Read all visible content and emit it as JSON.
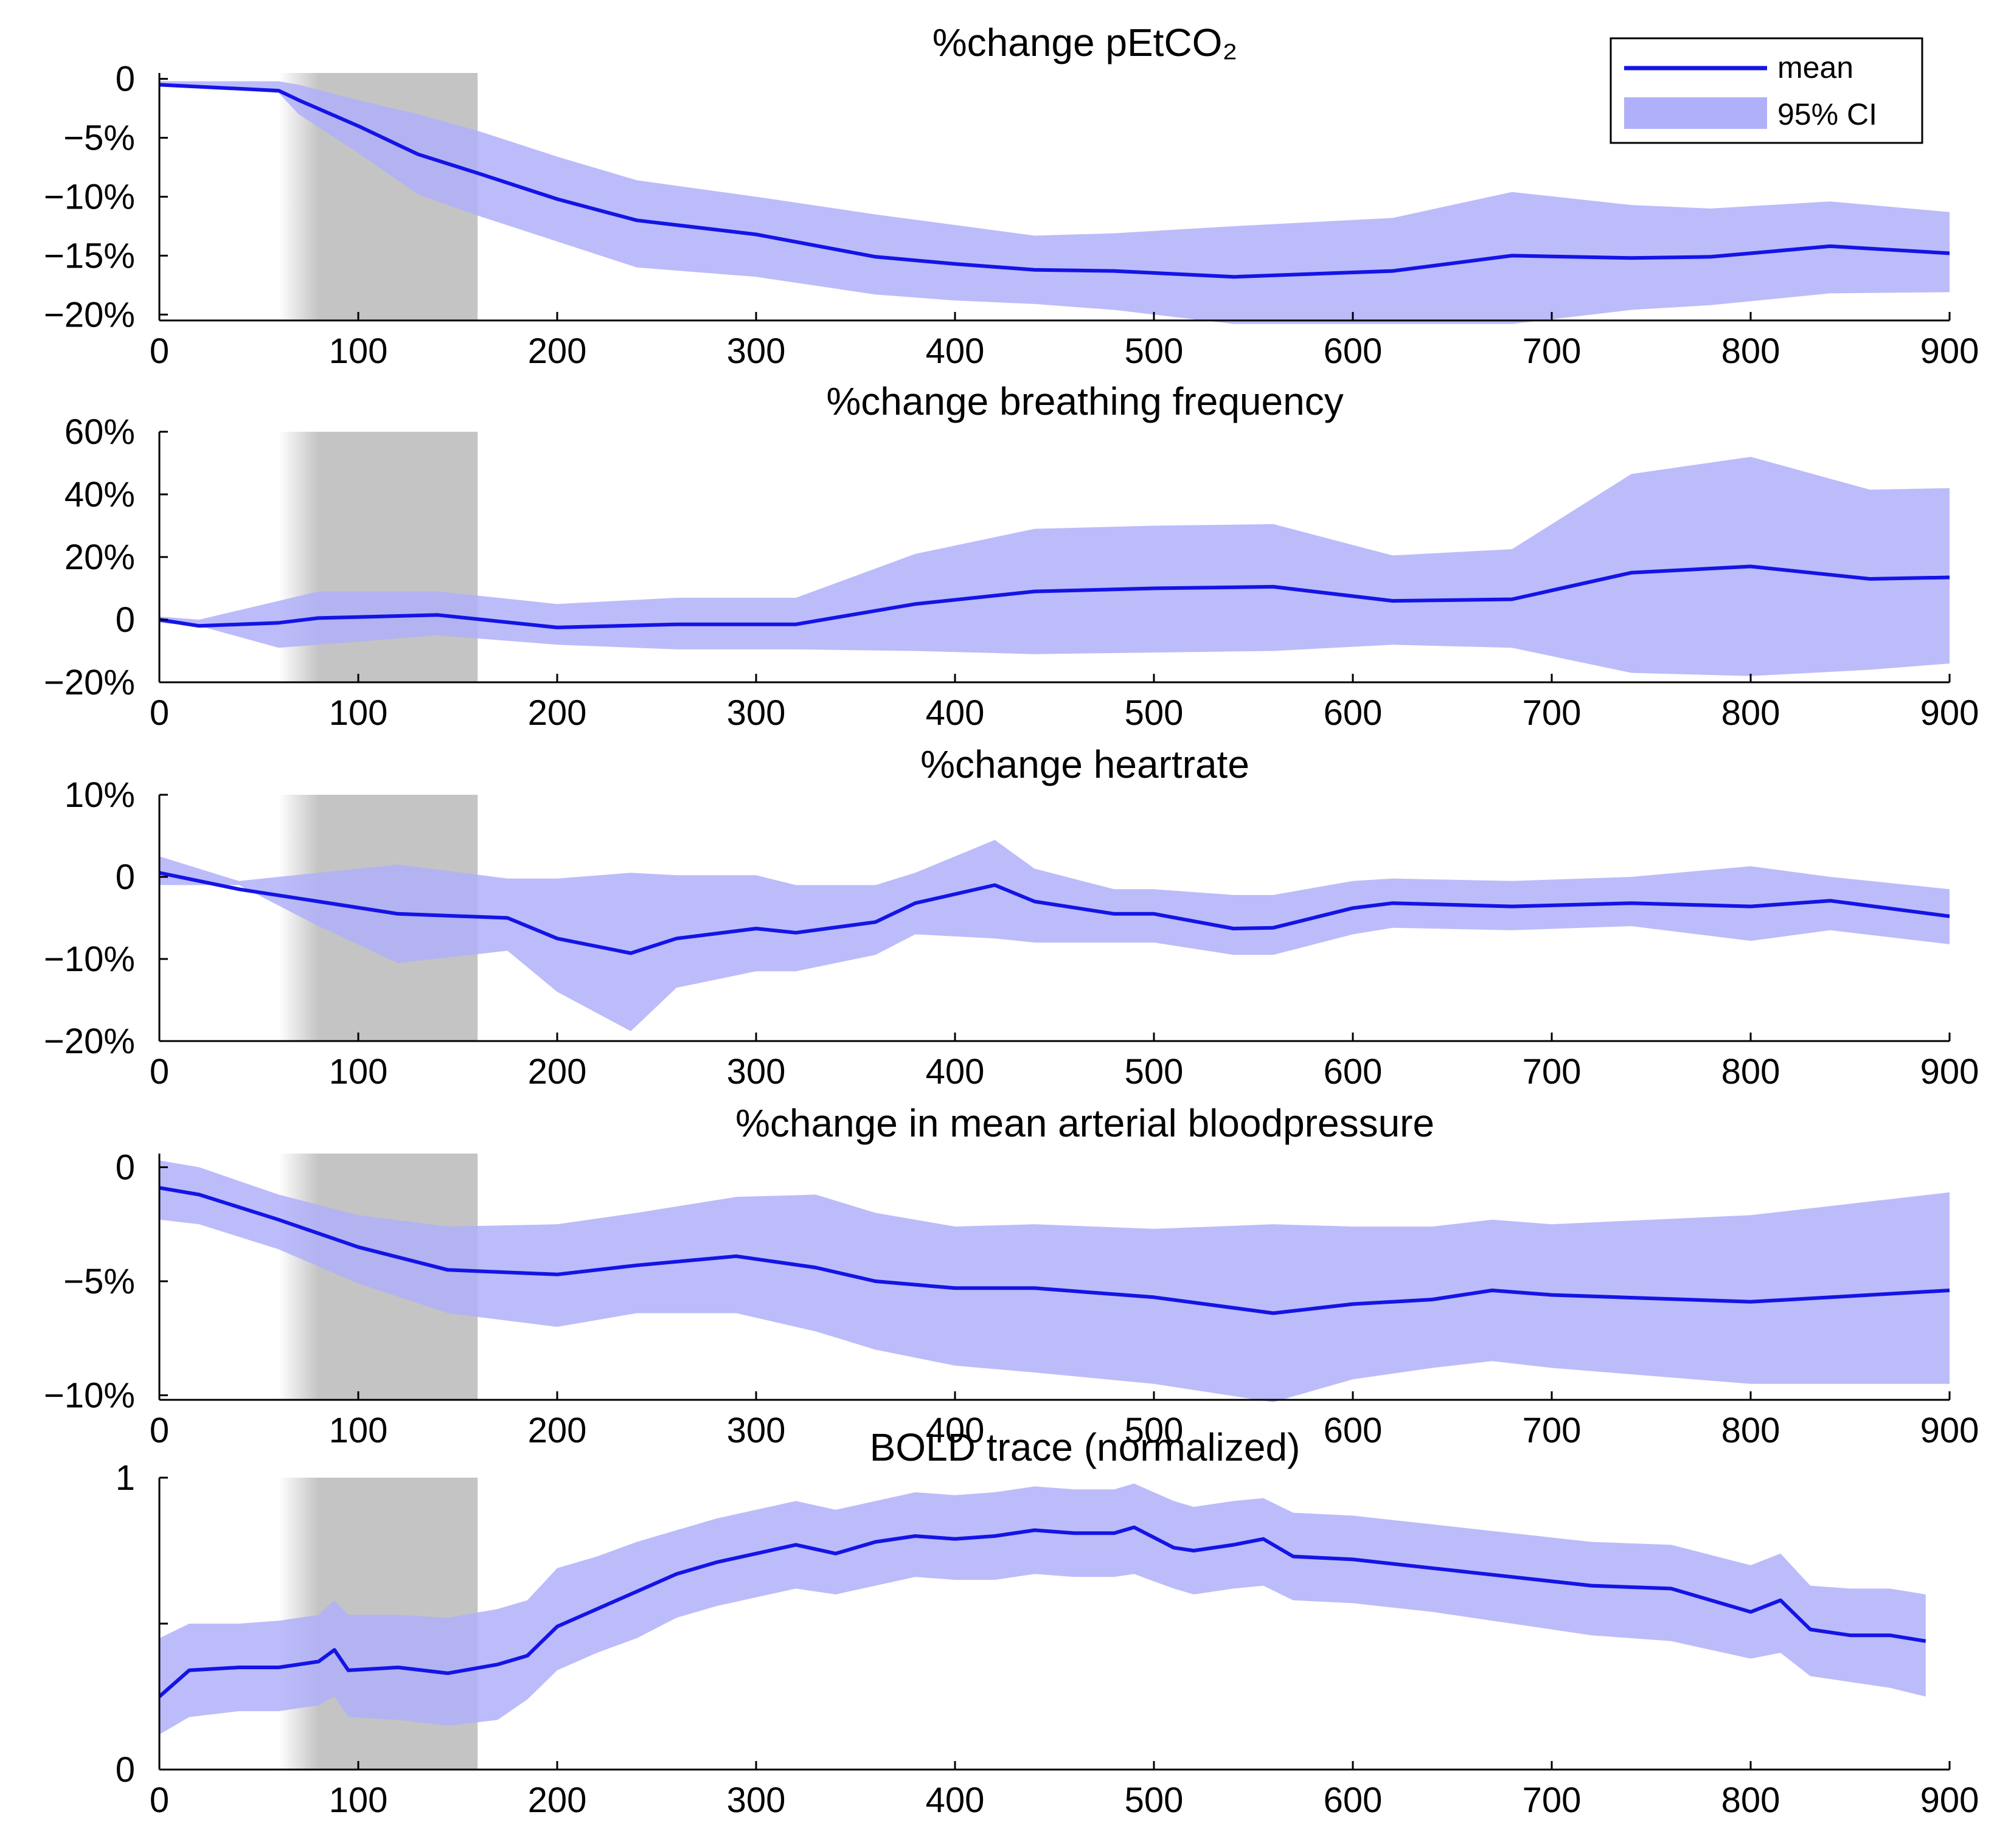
{
  "colors": {
    "mean_line": "#1414e6",
    "ci_band": "#b0b0fa",
    "stimulus_shade": "#c4c4c4",
    "axis": "#000000",
    "background": "#ffffff"
  },
  "legend": {
    "mean_label": "mean",
    "ci_label": "95% CI"
  },
  "chart_data": [
    {
      "type": "line",
      "title": "%change pEtCO₂",
      "xlabel": "",
      "ylabel": "",
      "xlim": [
        0,
        900
      ],
      "ylim": [
        -20.5,
        0.5
      ],
      "xticks": [
        0,
        100,
        200,
        300,
        400,
        500,
        600,
        700,
        800,
        900
      ],
      "xtick_labels": [
        "0",
        "100",
        "200",
        "300",
        "400",
        "500",
        "600",
        "700",
        "800",
        "900"
      ],
      "yticks": [
        0,
        -5,
        -10,
        -15,
        -20
      ],
      "ytick_labels": [
        "0",
        "−5%",
        "−10%",
        "−15%",
        "−20%"
      ],
      "shaded_interval": [
        60,
        160
      ],
      "series": [
        {
          "name": "mean",
          "x": [
            0,
            60,
            70,
            100,
            130,
            160,
            200,
            240,
            300,
            360,
            400,
            440,
            480,
            540,
            620,
            680,
            740,
            780,
            840,
            900
          ],
          "y": [
            -0.5,
            -1.0,
            -1.8,
            -4.0,
            -6.4,
            -8.0,
            -10.2,
            -12.0,
            -13.2,
            -15.1,
            -15.7,
            -16.2,
            -16.3,
            -16.8,
            -16.3,
            -15.0,
            -15.2,
            -15.1,
            -14.2,
            -14.8
          ],
          "lower": [
            -0.5,
            -1.2,
            -3.0,
            -6.3,
            -9.8,
            -11.6,
            -13.8,
            -16.0,
            -16.8,
            -18.3,
            -18.8,
            -19.1,
            -19.6,
            -20.8,
            -20.8,
            -20.8,
            -19.6,
            -19.2,
            -18.2,
            -18.1
          ],
          "upper": [
            -0.2,
            -0.2,
            -0.5,
            -1.8,
            -3.0,
            -4.4,
            -6.6,
            -8.6,
            -10.0,
            -11.5,
            -12.4,
            -13.3,
            -13.1,
            -12.5,
            -11.8,
            -9.6,
            -10.7,
            -11.0,
            -10.4,
            -11.3
          ]
        }
      ]
    },
    {
      "type": "line",
      "title": "%change breathing frequency",
      "xlabel": "",
      "ylabel": "",
      "xlim": [
        0,
        900
      ],
      "ylim": [
        -20,
        60
      ],
      "xticks": [
        0,
        100,
        200,
        300,
        400,
        500,
        600,
        700,
        800,
        900
      ],
      "xtick_labels": [
        "0",
        "100",
        "200",
        "300",
        "400",
        "500",
        "600",
        "700",
        "800",
        "900"
      ],
      "yticks": [
        60,
        40,
        20,
        0,
        -20
      ],
      "ytick_labels": [
        "60%",
        "40%",
        "20%",
        "0",
        "−20%"
      ],
      "shaded_interval": [
        60,
        160
      ],
      "series": [
        {
          "name": "mean",
          "x": [
            0,
            20,
            60,
            80,
            140,
            200,
            260,
            320,
            380,
            440,
            500,
            560,
            620,
            680,
            740,
            800,
            860,
            900
          ],
          "y": [
            0,
            -2,
            -1,
            0.5,
            1.5,
            -2.5,
            -1.5,
            -1.5,
            5,
            9,
            10,
            10.5,
            6,
            6.5,
            15,
            17,
            13,
            13.5
          ],
          "lower": [
            -1,
            -2,
            -9,
            -8,
            -5,
            -8,
            -9.5,
            -9.5,
            -10,
            -11,
            -10.5,
            -10,
            -8,
            -9,
            -17,
            -18,
            -16,
            -14
          ],
          "upper": [
            1,
            0,
            6,
            9,
            9,
            5,
            7,
            7,
            21,
            29,
            30,
            30.5,
            20.5,
            22.5,
            46.5,
            52,
            41.5,
            42
          ]
        }
      ]
    },
    {
      "type": "line",
      "title": "%change heartrate",
      "xlabel": "",
      "ylabel": "",
      "xlim": [
        0,
        900
      ],
      "ylim": [
        -20,
        10
      ],
      "xticks": [
        0,
        100,
        200,
        300,
        400,
        500,
        600,
        700,
        800,
        900
      ],
      "xtick_labels": [
        "0",
        "100",
        "200",
        "300",
        "400",
        "500",
        "600",
        "700",
        "800",
        "900"
      ],
      "yticks": [
        10,
        0,
        -10,
        -20
      ],
      "ytick_labels": [
        "10%",
        "0",
        "−10%",
        "−20%"
      ],
      "shaded_interval": [
        60,
        160
      ],
      "series": [
        {
          "name": "mean",
          "x": [
            0,
            40,
            80,
            120,
            175,
            200,
            237,
            260,
            300,
            320,
            360,
            380,
            420,
            440,
            480,
            500,
            540,
            560,
            600,
            620,
            680,
            740,
            800,
            840,
            900
          ],
          "y": [
            0.5,
            -1.5,
            -3,
            -4.5,
            -5,
            -7.5,
            -9.3,
            -7.5,
            -6.3,
            -6.8,
            -5.5,
            -3.2,
            -1,
            -3,
            -4.5,
            -4.5,
            -6.3,
            -6.2,
            -3.8,
            -3.2,
            -3.6,
            -3.2,
            -3.6,
            -2.9,
            -4.8
          ],
          "lower": [
            -1,
            -1,
            -6,
            -10.5,
            -9,
            -14,
            -18.8,
            -13.5,
            -11.5,
            -11.5,
            -9.5,
            -7,
            -7.5,
            -8,
            -8,
            -8,
            -9.5,
            -9.5,
            -7,
            -6.2,
            -6.5,
            -6,
            -7.8,
            -6.5,
            -8.2
          ],
          "upper": [
            2.5,
            -0.5,
            0.5,
            1.5,
            -0.2,
            -0.2,
            0.5,
            0.2,
            0.2,
            -1,
            -1,
            0.5,
            4.5,
            1,
            -1.5,
            -1.5,
            -2.2,
            -2.2,
            -0.5,
            -0.2,
            -0.5,
            0,
            1.3,
            0,
            -1.5
          ]
        }
      ]
    },
    {
      "type": "line",
      "title": "%change in mean arterial bloodpressure",
      "xlabel": "",
      "ylabel": "",
      "xlim": [
        0,
        900
      ],
      "ylim": [
        -10.2,
        0.6
      ],
      "xticks": [
        0,
        100,
        200,
        300,
        400,
        500,
        600,
        700,
        800,
        900
      ],
      "xtick_labels": [
        "0",
        "100",
        "200",
        "300",
        "400",
        "500",
        "600",
        "700",
        "800",
        "900"
      ],
      "yticks": [
        0,
        -5,
        -10
      ],
      "ytick_labels": [
        "0",
        "−5%",
        "−10%"
      ],
      "shaded_interval": [
        60,
        160
      ],
      "series": [
        {
          "name": "mean",
          "x": [
            0,
            20,
            60,
            100,
            145,
            200,
            240,
            290,
            330,
            360,
            400,
            440,
            500,
            560,
            600,
            640,
            670,
            700,
            800,
            900
          ],
          "y": [
            -0.9,
            -1.2,
            -2.3,
            -3.5,
            -4.5,
            -4.7,
            -4.3,
            -3.9,
            -4.4,
            -5.0,
            -5.3,
            -5.3,
            -5.7,
            -6.4,
            -6.0,
            -5.8,
            -5.4,
            -5.6,
            -5.9,
            -5.4
          ],
          "lower": [
            -2.3,
            -2.5,
            -3.6,
            -5.1,
            -6.4,
            -7.0,
            -6.4,
            -6.4,
            -7.2,
            -8.0,
            -8.7,
            -9.0,
            -9.5,
            -10.3,
            -9.3,
            -8.8,
            -8.5,
            -8.8,
            -9.5,
            -9.5
          ],
          "upper": [
            0.3,
            0.0,
            -1.2,
            -2.1,
            -2.6,
            -2.5,
            -2.0,
            -1.3,
            -1.2,
            -2.0,
            -2.6,
            -2.5,
            -2.7,
            -2.5,
            -2.6,
            -2.6,
            -2.3,
            -2.5,
            -2.1,
            -1.1
          ]
        }
      ]
    },
    {
      "type": "line",
      "title": "BOLD trace (normalized)",
      "xlabel": "",
      "ylabel": "",
      "xlim": [
        0,
        900
      ],
      "ylim": [
        0,
        1
      ],
      "xticks": [
        0,
        100,
        200,
        300,
        400,
        500,
        600,
        700,
        800,
        900
      ],
      "xtick_labels": [
        "0",
        "100",
        "200",
        "300",
        "400",
        "500",
        "600",
        "700",
        "800",
        "900"
      ],
      "yticks": [
        1,
        0.5,
        0
      ],
      "ytick_labels": [
        "1",
        "",
        "0"
      ],
      "shaded_interval": [
        60,
        160
      ],
      "series": [
        {
          "name": "mean",
          "x": [
            0,
            15,
            40,
            60,
            80,
            88,
            95,
            120,
            145,
            170,
            185,
            200,
            220,
            240,
            260,
            280,
            300,
            320,
            340,
            360,
            380,
            400,
            420,
            440,
            460,
            480,
            490,
            510,
            520,
            540,
            555,
            570,
            600,
            640,
            680,
            720,
            760,
            800,
            815,
            830,
            850,
            870,
            888
          ],
          "y": [
            0.25,
            0.34,
            0.35,
            0.35,
            0.37,
            0.41,
            0.34,
            0.35,
            0.33,
            0.36,
            0.39,
            0.49,
            0.55,
            0.61,
            0.67,
            0.71,
            0.74,
            0.77,
            0.74,
            0.78,
            0.8,
            0.79,
            0.8,
            0.82,
            0.81,
            0.81,
            0.83,
            0.76,
            0.75,
            0.77,
            0.79,
            0.73,
            0.72,
            0.69,
            0.66,
            0.63,
            0.62,
            0.54,
            0.58,
            0.48,
            0.46,
            0.46,
            0.44
          ],
          "lower": [
            0.12,
            0.18,
            0.2,
            0.2,
            0.22,
            0.25,
            0.18,
            0.17,
            0.15,
            0.17,
            0.24,
            0.34,
            0.4,
            0.45,
            0.52,
            0.56,
            0.59,
            0.62,
            0.6,
            0.63,
            0.66,
            0.65,
            0.65,
            0.67,
            0.66,
            0.66,
            0.67,
            0.62,
            0.6,
            0.62,
            0.63,
            0.58,
            0.57,
            0.54,
            0.5,
            0.46,
            0.44,
            0.38,
            0.4,
            0.32,
            0.3,
            0.28,
            0.25
          ],
          "upper": [
            0.45,
            0.5,
            0.5,
            0.51,
            0.53,
            0.58,
            0.53,
            0.53,
            0.52,
            0.55,
            0.58,
            0.69,
            0.73,
            0.78,
            0.82,
            0.86,
            0.89,
            0.92,
            0.89,
            0.92,
            0.95,
            0.94,
            0.95,
            0.97,
            0.96,
            0.96,
            0.98,
            0.92,
            0.9,
            0.92,
            0.93,
            0.88,
            0.87,
            0.84,
            0.81,
            0.78,
            0.77,
            0.7,
            0.74,
            0.63,
            0.62,
            0.62,
            0.6
          ]
        }
      ]
    }
  ]
}
